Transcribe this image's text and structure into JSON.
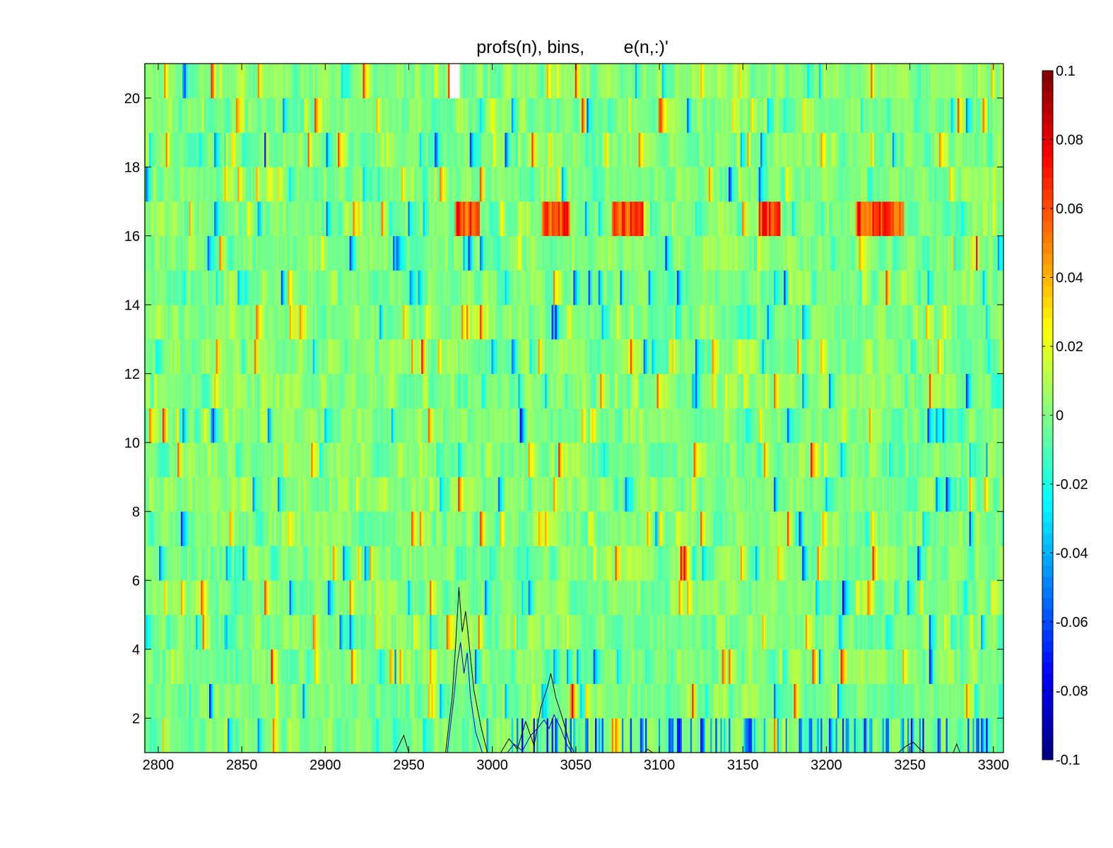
{
  "chart_data": {
    "type": "heatmap",
    "title": "profs(n), bins,        e(n,:)'",
    "xlabel": "",
    "ylabel": "",
    "xlim": [
      2792,
      3306
    ],
    "ylim": [
      1,
      21
    ],
    "x_ticks": [
      2800,
      2850,
      2900,
      2950,
      3000,
      3050,
      3100,
      3150,
      3200,
      3250,
      3300
    ],
    "y_ticks": [
      2,
      4,
      6,
      8,
      10,
      12,
      14,
      16,
      18,
      20
    ],
    "rows": 20,
    "row_centers": [
      1.5,
      2.5,
      3.5,
      4.5,
      5.5,
      6.5,
      7.5,
      8.5,
      9.5,
      10.5,
      11.5,
      12.5,
      13.5,
      14.5,
      15.5,
      16.5,
      17.5,
      18.5,
      19.5,
      20.5
    ],
    "colormap": "jet",
    "clim": [
      -0.1,
      0.1
    ],
    "colorbar": {
      "ticks": [
        0.1,
        0.08,
        0.06,
        0.04,
        0.02,
        0,
        -0.02,
        -0.04,
        -0.06,
        -0.08,
        -0.1
      ],
      "labels": [
        "0.1",
        "0.08",
        "0.06",
        "0.04",
        "0.02",
        "0",
        "-0.02",
        "-0.04",
        "-0.06",
        "-0.08",
        "-0.1"
      ]
    },
    "value_summary": "cells mostly near 0 (green/cyan) with scattered extremes; row n=16 shows a band of high values (0.04-0.08) around x=2980-3000, 3030-3045, 3070-3090 and 3220-3245",
    "overlay_profiles": {
      "description": "line profiles drawn near the bottom of the plot (y between 1 and ~5.8)",
      "series": [
        {
          "color": "#000000",
          "points": [
            [
              2942,
              1.0
            ],
            [
              2947,
              1.5
            ],
            [
              2950,
              1.0
            ],
            [
              2972,
              1.0
            ],
            [
              2976,
              2.6
            ],
            [
              2978,
              4.1
            ],
            [
              2980,
              5.8
            ],
            [
              2982,
              4.5
            ],
            [
              2984,
              5.1
            ],
            [
              2986,
              4.2
            ],
            [
              2989,
              2.8
            ],
            [
              2993,
              1.8
            ],
            [
              2997,
              1.0
            ],
            [
              3005,
              1.0
            ],
            [
              3010,
              1.4
            ],
            [
              3015,
              1.1
            ],
            [
              3020,
              1.9
            ],
            [
              3025,
              1.2
            ],
            [
              3029,
              2.3
            ],
            [
              3033,
              2.9
            ],
            [
              3035,
              3.3
            ],
            [
              3038,
              2.6
            ],
            [
              3042,
              2.0
            ],
            [
              3046,
              1.3
            ],
            [
              3049,
              1.0
            ],
            [
              3091,
              1.0
            ],
            [
              3093,
              1.1
            ],
            [
              3096,
              1.0
            ],
            [
              3243,
              1.0
            ],
            [
              3248,
              1.2
            ],
            [
              3252,
              1.3
            ],
            [
              3256,
              1.1
            ],
            [
              3259,
              1.0
            ],
            [
              3276,
              1.0
            ],
            [
              3278,
              1.25
            ],
            [
              3280,
              1.0
            ]
          ]
        },
        {
          "color": "#0000cc",
          "points": [
            [
              2973,
              1.0
            ],
            [
              2977,
              2.6
            ],
            [
              2979,
              3.6
            ],
            [
              2981,
              4.2
            ],
            [
              2983,
              3.3
            ],
            [
              2985,
              3.9
            ],
            [
              2987,
              2.6
            ],
            [
              2990,
              1.6
            ],
            [
              2994,
              1.0
            ],
            [
              3009,
              1.0
            ],
            [
              3013,
              1.25
            ],
            [
              3018,
              1.05
            ],
            [
              3023,
              1.5
            ],
            [
              3027,
              1.7
            ],
            [
              3031,
              1.95
            ],
            [
              3034,
              1.7
            ],
            [
              3037,
              2.1
            ],
            [
              3041,
              1.7
            ],
            [
              3045,
              1.2
            ],
            [
              3048,
              1.0
            ]
          ]
        }
      ]
    }
  }
}
